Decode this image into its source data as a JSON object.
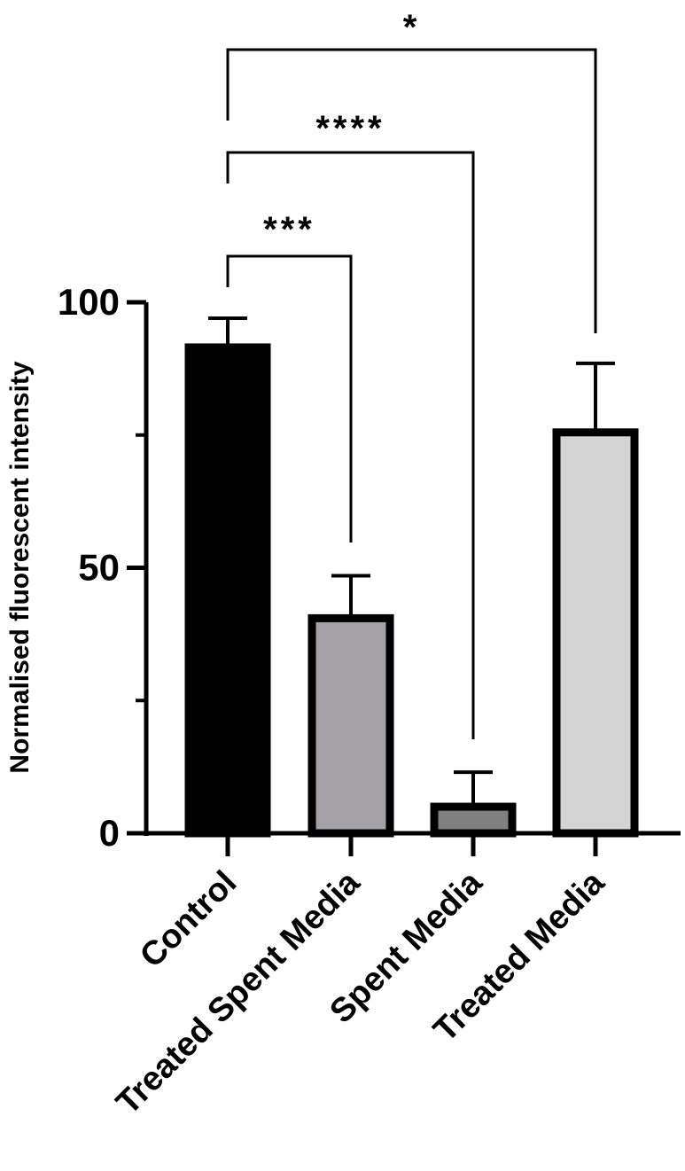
{
  "chart_data": {
    "type": "bar",
    "categories": [
      "Control",
      "Treated Spent Media",
      "Spent Media",
      "Treated Media"
    ],
    "values": [
      91.5,
      40.5,
      5,
      75.5
    ],
    "errors": [
      5.5,
      8,
      6.5,
      13
    ],
    "bar_colors": [
      "#000000",
      "#a3a1a5",
      "#808080",
      "#d4d4d4"
    ],
    "ylabel": "Normalised fluorescent intensity",
    "ylim": [
      0,
      100
    ],
    "yticks": [
      0,
      50,
      100
    ],
    "ytick_labels": [
      "0",
      "50",
      "100"
    ],
    "grid": false,
    "comparisons": [
      {
        "from": "Control",
        "to": "Treated Spent Media",
        "label": "***"
      },
      {
        "from": "Control",
        "to": "Spent Media",
        "label": "****"
      },
      {
        "from": "Control",
        "to": "Treated Media",
        "label": "*"
      }
    ]
  }
}
